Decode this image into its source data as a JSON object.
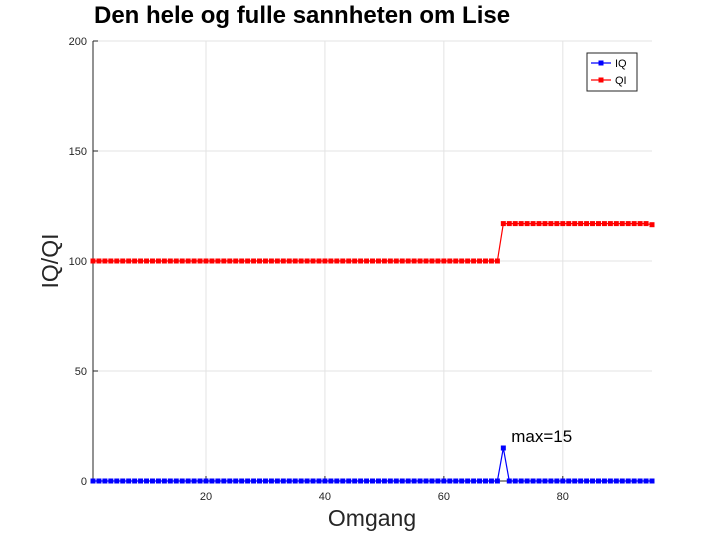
{
  "chart_data": {
    "type": "line",
    "title": "Den hele og fulle sannheten om Lise",
    "xlabel": "Omgang",
    "ylabel": "IQ/QI",
    "xlim": [
      1,
      95
    ],
    "ylim": [
      0,
      200
    ],
    "xticks": [
      20,
      40,
      60,
      80
    ],
    "yticks": [
      0,
      50,
      100,
      150,
      200
    ],
    "grid": true,
    "legend_position": "top-right",
    "x": [
      1,
      2,
      3,
      4,
      5,
      6,
      7,
      8,
      9,
      10,
      11,
      12,
      13,
      14,
      15,
      16,
      17,
      18,
      19,
      20,
      21,
      22,
      23,
      24,
      25,
      26,
      27,
      28,
      29,
      30,
      31,
      32,
      33,
      34,
      35,
      36,
      37,
      38,
      39,
      40,
      41,
      42,
      43,
      44,
      45,
      46,
      47,
      48,
      49,
      50,
      51,
      52,
      53,
      54,
      55,
      56,
      57,
      58,
      59,
      60,
      61,
      62,
      63,
      64,
      65,
      66,
      67,
      68,
      69,
      70,
      71,
      72,
      73,
      74,
      75,
      76,
      77,
      78,
      79,
      80,
      81,
      82,
      83,
      84,
      85,
      86,
      87,
      88,
      89,
      90,
      91,
      92,
      93,
      94,
      95
    ],
    "series": [
      {
        "name": "IQ",
        "color": "#0000ff",
        "values": [
          0,
          0,
          0,
          0,
          0,
          0,
          0,
          0,
          0,
          0,
          0,
          0,
          0,
          0,
          0,
          0,
          0,
          0,
          0,
          0,
          0,
          0,
          0,
          0,
          0,
          0,
          0,
          0,
          0,
          0,
          0,
          0,
          0,
          0,
          0,
          0,
          0,
          0,
          0,
          0,
          0,
          0,
          0,
          0,
          0,
          0,
          0,
          0,
          0,
          0,
          0,
          0,
          0,
          0,
          0,
          0,
          0,
          0,
          0,
          0,
          0,
          0,
          0,
          0,
          0,
          0,
          0,
          0,
          0,
          15,
          0,
          0,
          0,
          0,
          0,
          0,
          0,
          0,
          0,
          0,
          0,
          0,
          0,
          0,
          0,
          0,
          0,
          0,
          0,
          0,
          0,
          0,
          0,
          0,
          0
        ]
      },
      {
        "name": "QI",
        "color": "#ff0000",
        "values": [
          100,
          100,
          100,
          100,
          100,
          100,
          100,
          100,
          100,
          100,
          100,
          100,
          100,
          100,
          100,
          100,
          100,
          100,
          100,
          100,
          100,
          100,
          100,
          100,
          100,
          100,
          100,
          100,
          100,
          100,
          100,
          100,
          100,
          100,
          100,
          100,
          100,
          100,
          100,
          100,
          100,
          100,
          100,
          100,
          100,
          100,
          100,
          100,
          100,
          100,
          100,
          100,
          100,
          100,
          100,
          100,
          100,
          100,
          100,
          100,
          100,
          100,
          100,
          100,
          100,
          100,
          100,
          100,
          100,
          117,
          117,
          117,
          117,
          117,
          117,
          117,
          117,
          117,
          117,
          117,
          117,
          117,
          117,
          117,
          117,
          117,
          117,
          117,
          117,
          117,
          117,
          117,
          117,
          117,
          116.5
        ]
      }
    ],
    "annotations": [
      {
        "text": "max=15",
        "x": 71,
        "y": 20
      }
    ]
  }
}
